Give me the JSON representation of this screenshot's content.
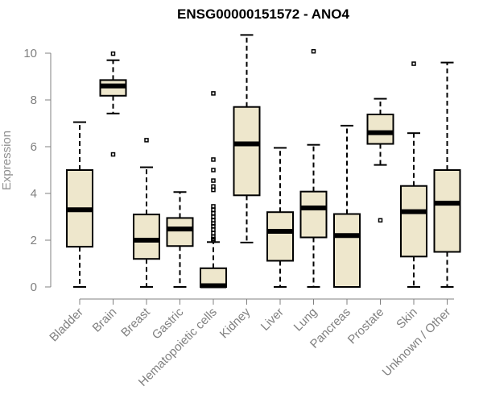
{
  "chart_data": {
    "type": "boxplot",
    "title": "ENSG00000151572 - ANO4",
    "xlabel": "",
    "ylabel": "Expression",
    "ylim": [
      0,
      10.8
    ],
    "yticks": [
      "0",
      "2",
      "4",
      "6",
      "8",
      "10"
    ],
    "box_fill": "#EEE7CC",
    "categories": [
      "Bladder",
      "Brain",
      "Breast",
      "Gastric",
      "Hematopoietic cells",
      "Kidney",
      "Liver",
      "Lung",
      "Pancreas",
      "Prostate",
      "Skin",
      "Unknown / Other"
    ],
    "boxes": [
      {
        "name": "Bladder",
        "whislo": 0.0,
        "q1": 1.72,
        "med": 3.3,
        "q3": 5.0,
        "whishi": 7.05,
        "fliers": []
      },
      {
        "name": "Brain",
        "whislo": 7.42,
        "q1": 8.18,
        "med": 8.6,
        "q3": 8.85,
        "whishi": 9.7,
        "fliers": [
          9.98,
          5.67
        ]
      },
      {
        "name": "Breast",
        "whislo": 0.0,
        "q1": 1.2,
        "med": 2.0,
        "q3": 3.1,
        "whishi": 5.12,
        "fliers": [
          6.28
        ]
      },
      {
        "name": "Gastric",
        "whislo": 0.0,
        "q1": 1.75,
        "med": 2.48,
        "q3": 2.95,
        "whishi": 4.06,
        "fliers": []
      },
      {
        "name": "Hematopoietic cells",
        "whislo": 0.0,
        "q1": 0.0,
        "med": 0.05,
        "q3": 0.8,
        "whishi": 1.92,
        "fliers": [
          8.28,
          5.45,
          5.0,
          4.55,
          4.3,
          4.15,
          3.45,
          3.3,
          3.15,
          3.0,
          2.85,
          2.72,
          2.6,
          2.45,
          2.3,
          2.15,
          2.05,
          1.98
        ]
      },
      {
        "name": "Kidney",
        "whislo": 1.9,
        "q1": 3.92,
        "med": 6.12,
        "q3": 7.7,
        "whishi": 10.78,
        "fliers": []
      },
      {
        "name": "Liver",
        "whislo": 0.0,
        "q1": 1.12,
        "med": 2.38,
        "q3": 3.2,
        "whishi": 5.95,
        "fliers": []
      },
      {
        "name": "Lung",
        "whislo": 0.0,
        "q1": 2.12,
        "med": 3.38,
        "q3": 4.08,
        "whishi": 6.08,
        "fliers": [
          10.08
        ]
      },
      {
        "name": "Pancreas",
        "whislo": 0.0,
        "q1": 0.0,
        "med": 2.2,
        "q3": 3.12,
        "whishi": 6.9,
        "fliers": []
      },
      {
        "name": "Prostate",
        "whislo": 5.22,
        "q1": 6.12,
        "med": 6.6,
        "q3": 7.38,
        "whishi": 8.05,
        "fliers": [
          2.85
        ]
      },
      {
        "name": "Skin",
        "whislo": 0.0,
        "q1": 1.3,
        "med": 3.22,
        "q3": 4.32,
        "whishi": 6.58,
        "fliers": [
          9.55
        ]
      },
      {
        "name": "Unknown / Other",
        "whislo": 0.0,
        "q1": 1.5,
        "med": 3.58,
        "q3": 5.0,
        "whishi": 9.6,
        "fliers": []
      }
    ]
  }
}
